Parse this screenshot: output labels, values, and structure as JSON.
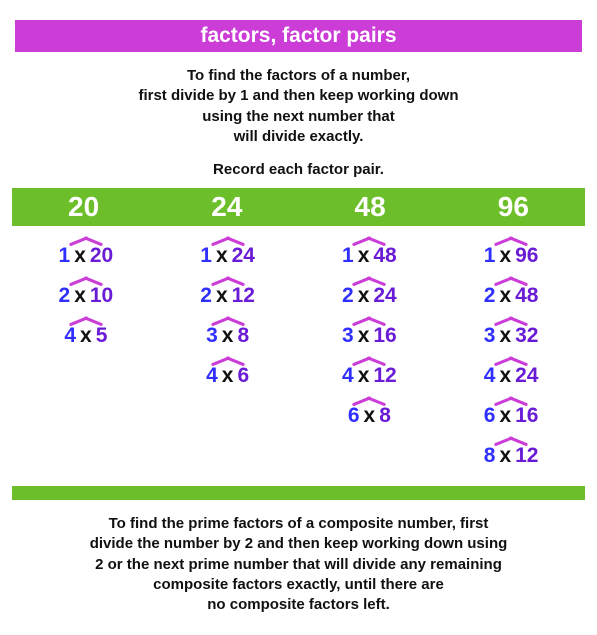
{
  "colors": {
    "title_bg": "#cb3dd6",
    "title_fg": "#ffffff",
    "header_bg": "#6cbf2a",
    "header_fg": "#ffffff",
    "caret": "#cb3dd6",
    "factor_left": "#2f2fff",
    "x_color": "#111111",
    "factor_right": "#6a1bd6",
    "intro_color": "#111111",
    "bottom_color": "#111111"
  },
  "sizes": {
    "title_font": 21,
    "intro_font": 15,
    "record_font": 15,
    "header_font": 28,
    "pair_font": 21,
    "bottom_font": 15
  },
  "title": "factors, factor pairs",
  "intro_lines": [
    "To find the factors of a number,",
    "first divide by 1 and then keep working down",
    "using the next number that",
    "will divide exactly."
  ],
  "record_line": "Record each factor pair.",
  "headers": [
    "20",
    "24",
    "48",
    "96"
  ],
  "pairs": [
    [
      [
        "1",
        "20"
      ],
      [
        "2",
        "10"
      ],
      [
        "4",
        "5"
      ]
    ],
    [
      [
        "1",
        "24"
      ],
      [
        "2",
        "12"
      ],
      [
        "3",
        "8"
      ],
      [
        "4",
        "6"
      ]
    ],
    [
      [
        "1",
        "48"
      ],
      [
        "2",
        "24"
      ],
      [
        "3",
        "16"
      ],
      [
        "4",
        "12"
      ],
      [
        "6",
        "8"
      ]
    ],
    [
      [
        "1",
        "96"
      ],
      [
        "2",
        "48"
      ],
      [
        "3",
        "32"
      ],
      [
        "4",
        "24"
      ],
      [
        "6",
        "16"
      ],
      [
        "8",
        "12"
      ]
    ]
  ],
  "x_symbol": "x",
  "bottom_lines": [
    "To find the prime factors of a composite number, first",
    "divide the number by 2 and then keep working down using",
    "2 or the next prime number that will divide any remaining",
    "composite factors exactly, until there are",
    "no composite factors left."
  ]
}
